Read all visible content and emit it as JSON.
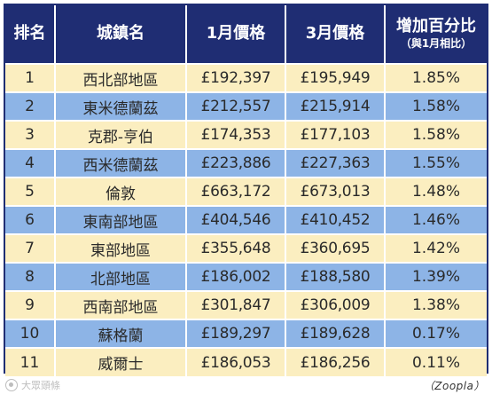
{
  "table": {
    "headers": {
      "rank": "排名",
      "region": "城鎮名",
      "jan_price": "1月價格",
      "mar_price": "3月價格",
      "increase": "增加百分比",
      "increase_sub": "（與1月相比）"
    },
    "rows": [
      {
        "rank": "1",
        "region": "西北部地區",
        "jan": "£192,397",
        "mar": "£195,949",
        "pct": "1.85%"
      },
      {
        "rank": "2",
        "region": "東米德蘭茲",
        "jan": "£212,557",
        "mar": "£215,914",
        "pct": "1.58%"
      },
      {
        "rank": "3",
        "region": "克郡-亨伯",
        "jan": "£174,353",
        "mar": "£177,103",
        "pct": "1.58%"
      },
      {
        "rank": "4",
        "region": "西米德蘭茲",
        "jan": "£223,886",
        "mar": "£227,363",
        "pct": "1.55%"
      },
      {
        "rank": "5",
        "region": "倫敦",
        "jan": "£663,172",
        "mar": "£673,013",
        "pct": "1.48%"
      },
      {
        "rank": "6",
        "region": "東南部地區",
        "jan": "£404,546",
        "mar": "£410,452",
        "pct": "1.46%"
      },
      {
        "rank": "7",
        "region": "東部地區",
        "jan": "£355,648",
        "mar": "£360,695",
        "pct": "1.42%"
      },
      {
        "rank": "8",
        "region": "北部地區",
        "jan": "£186,002",
        "mar": "£188,580",
        "pct": "1.39%"
      },
      {
        "rank": "9",
        "region": "西南部地區",
        "jan": "£301,847",
        "mar": "£306,009",
        "pct": "1.38%"
      },
      {
        "rank": "10",
        "region": "蘇格蘭",
        "jan": "£189,297",
        "mar": "£189,628",
        "pct": "0.17%"
      },
      {
        "rank": "11",
        "region": "威爾士",
        "jan": "£186,053",
        "mar": "£186,256",
        "pct": "0.11%"
      }
    ]
  },
  "source": "（Zoopla）",
  "watermark": {
    "text": "大眾頭條",
    "icon": "watermark-logo-icon"
  },
  "colors": {
    "header_bg": "#1f2d73",
    "row_odd": "#fbeec0",
    "row_even": "#8db4e6"
  }
}
